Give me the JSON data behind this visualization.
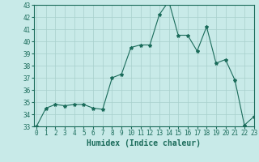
{
  "x": [
    0,
    1,
    2,
    3,
    4,
    5,
    6,
    7,
    8,
    9,
    10,
    11,
    12,
    13,
    14,
    15,
    16,
    17,
    18,
    19,
    20,
    21,
    22,
    23
  ],
  "y": [
    33,
    34.5,
    34.8,
    34.7,
    34.8,
    34.8,
    34.5,
    34.4,
    37.0,
    37.3,
    39.5,
    39.7,
    39.7,
    42.2,
    43.3,
    40.5,
    40.5,
    39.2,
    41.2,
    38.2,
    38.5,
    36.8,
    33.1,
    33.8
  ],
  "line_color": "#1a6b5a",
  "marker": "*",
  "bg_color": "#c8eae8",
  "grid_color": "#a8d0cc",
  "xlabel": "Humidex (Indice chaleur)",
  "ylim": [
    33,
    43
  ],
  "xlim": [
    -0.3,
    23
  ],
  "yticks": [
    33,
    34,
    35,
    36,
    37,
    38,
    39,
    40,
    41,
    42,
    43
  ],
  "xticks": [
    0,
    1,
    2,
    3,
    4,
    5,
    6,
    7,
    8,
    9,
    10,
    11,
    12,
    13,
    14,
    15,
    16,
    17,
    18,
    19,
    20,
    21,
    22,
    23
  ],
  "tick_color": "#1a6b5a",
  "label_color": "#1a6b5a",
  "font_size": 5.5,
  "xlabel_fontsize": 7
}
